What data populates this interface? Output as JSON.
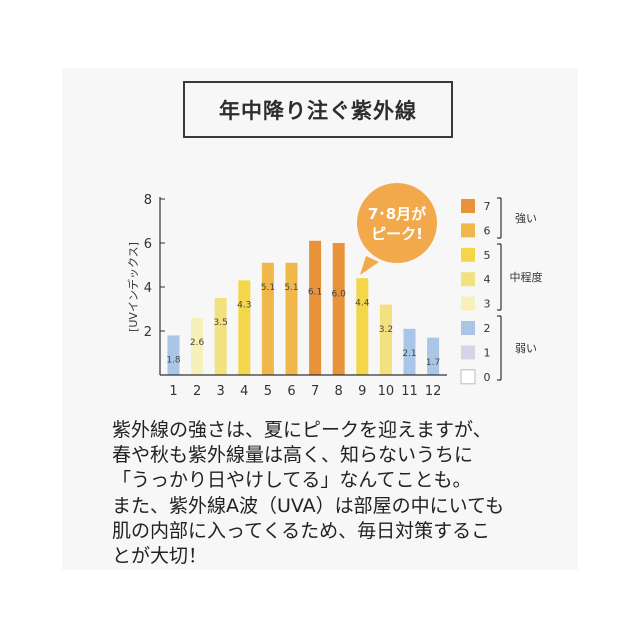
{
  "title": "年中降り注ぐ紫外線",
  "callout": {
    "line1": "7･8月が",
    "line2": "ピーク!"
  },
  "description": [
    "紫外線の強さは、夏にピークを迎えますが、",
    "春や秋も紫外線量は高く、知らないうちに",
    "「うっかり日やけしてる」なんてことも。",
    "また、紫外線A波（UVA）は部屋の中にいても",
    "肌の内部に入ってくるため、毎日対策するこ",
    "とが大切！"
  ],
  "chart_data": {
    "type": "bar",
    "categories": [
      "1",
      "2",
      "3",
      "4",
      "5",
      "6",
      "7",
      "8",
      "9",
      "10",
      "11",
      "12"
    ],
    "values": [
      1.8,
      2.6,
      3.5,
      4.3,
      5.1,
      5.1,
      6.1,
      6.0,
      4.4,
      3.2,
      2.1,
      1.7
    ],
    "value_labels": [
      "1.8",
      "2.6",
      "3.5",
      "4.3",
      "5.1",
      "5.1",
      "6.1",
      "6.0",
      "4.4",
      "3.2",
      "2.1",
      "1.7"
    ],
    "bar_levels": [
      2,
      3,
      4,
      5,
      6,
      6,
      7,
      7,
      5,
      4,
      2,
      2
    ],
    "ylabel": "[UVインデックス]",
    "ylim": [
      0,
      8
    ],
    "yticks": [
      "2",
      "4",
      "6",
      "8"
    ],
    "legend": {
      "levels": [
        {
          "label": "7",
          "color": "#e8923a"
        },
        {
          "label": "6",
          "color": "#f0b84a"
        },
        {
          "label": "5",
          "color": "#f3d64a"
        },
        {
          "label": "4",
          "color": "#f3e07f"
        },
        {
          "label": "3",
          "color": "#f7f0b8"
        },
        {
          "label": "2",
          "color": "#a9c6e6"
        },
        {
          "label": "1",
          "color": "#d9d3e8"
        },
        {
          "label": "0",
          "color": "#ffffff"
        }
      ],
      "groups": [
        "強い",
        "中程度",
        "弱い"
      ]
    },
    "callout_color": "#f2a94b"
  }
}
